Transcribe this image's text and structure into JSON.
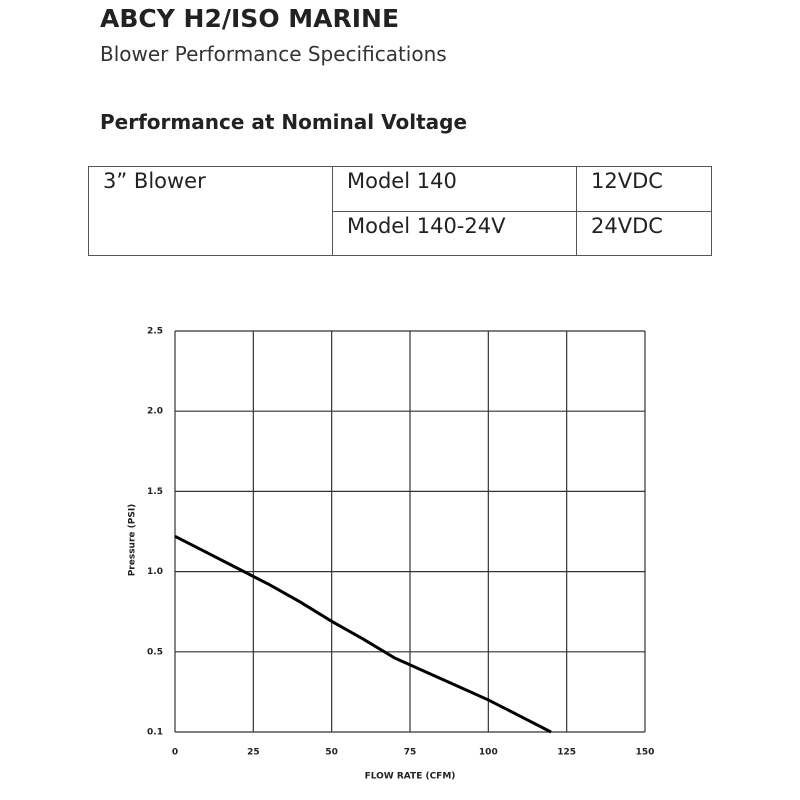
{
  "header": {
    "title": "ABCY H2/ISO MARINE",
    "subtitle": "Blower Performance Specifications",
    "section": "Performance at Nominal Voltage"
  },
  "table": {
    "rows": [
      [
        "3” Blower",
        "Model 140",
        "12VDC"
      ],
      [
        "Model 140-24V",
        "24VDC"
      ]
    ]
  },
  "chart_data": {
    "type": "line",
    "x_label": "FLOW RATE (CFM)",
    "y_label": "Pressure (PSI)",
    "x": [
      0,
      10,
      20,
      25,
      30,
      40,
      50,
      60,
      70,
      80,
      90,
      100,
      110,
      120
    ],
    "values": [
      1.22,
      1.12,
      1.02,
      0.97,
      0.92,
      0.81,
      0.69,
      0.58,
      0.47,
      0.4,
      0.33,
      0.26,
      0.18,
      0.1
    ],
    "color": "#000000",
    "xlim": [
      0,
      150
    ],
    "xticks": [
      0,
      25,
      50,
      75,
      100,
      125,
      150
    ],
    "ylim": [
      0.1,
      2.5
    ],
    "yticks": [
      0.1,
      0.5,
      {
        "value": 1,
        "label": "1.0"
      },
      1.5,
      {
        "value": 2,
        "label": "2.0"
      },
      2.5
    ],
    "grid": true
  }
}
